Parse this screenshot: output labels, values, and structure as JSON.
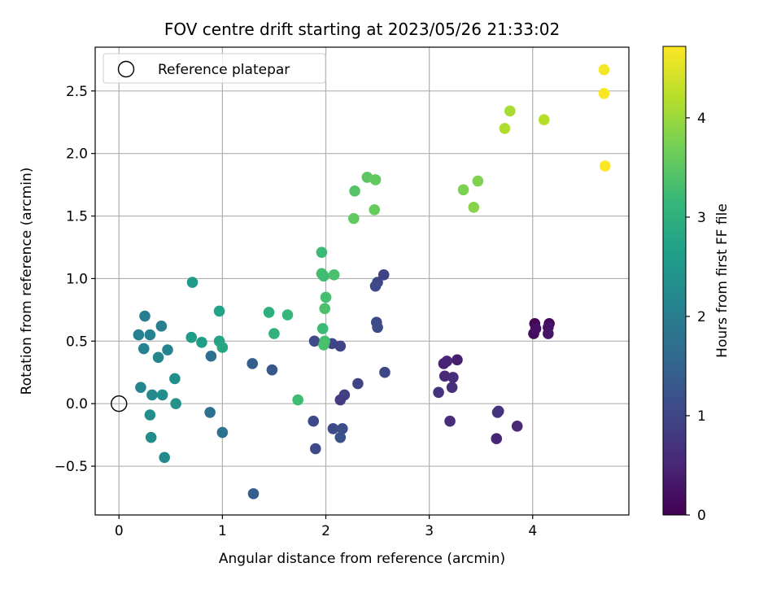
{
  "chart_data": {
    "type": "scatter",
    "title": "FOV centre drift starting at 2023/05/26 21:33:02",
    "xlabel": "Angular distance from reference (arcmin)",
    "ylabel": "Rotation from reference (arcmin)",
    "xlim": [
      -0.23,
      4.93
    ],
    "ylim": [
      -0.89,
      2.85
    ],
    "xticks": [
      0,
      1,
      2,
      3,
      4
    ],
    "xtick_labels": [
      "0",
      "1",
      "2",
      "3",
      "4"
    ],
    "yticks": [
      -0.5,
      0.0,
      0.5,
      1.0,
      1.5,
      2.0,
      2.5
    ],
    "ytick_labels": [
      "−0.5",
      "0.0",
      "0.5",
      "1.0",
      "1.5",
      "2.0",
      "2.5"
    ],
    "grid": true,
    "legend": {
      "placement": "top-left",
      "entries": [
        {
          "label": "Reference platepar",
          "marker": "open-circle"
        }
      ]
    },
    "reference_point": {
      "x": 0.0,
      "y": 0.0
    },
    "colorbar": {
      "label": "Hours from first FF file",
      "range": [
        0,
        4.72
      ],
      "ticks": [
        0,
        1,
        2,
        3,
        4
      ],
      "tick_labels": [
        "0",
        "1",
        "2",
        "3",
        "4"
      ],
      "colormap": "viridis",
      "colors": [
        "#440154",
        "#482878",
        "#3e4989",
        "#31688e",
        "#26828e",
        "#1f9e89",
        "#35b779",
        "#6ece58",
        "#b5de2b",
        "#fde725"
      ]
    },
    "points": [
      {
        "x": 4.02,
        "y": 0.64,
        "h": 0.05
      },
      {
        "x": 4.16,
        "y": 0.64,
        "h": 0.1
      },
      {
        "x": 4.01,
        "y": 0.56,
        "h": 0.15
      },
      {
        "x": 4.03,
        "y": 0.6,
        "h": 0.2
      },
      {
        "x": 4.15,
        "y": 0.61,
        "h": 0.25
      },
      {
        "x": 4.15,
        "y": 0.56,
        "h": 0.3
      },
      {
        "x": 3.27,
        "y": 0.35,
        "h": 0.4
      },
      {
        "x": 3.14,
        "y": 0.32,
        "h": 0.45
      },
      {
        "x": 3.17,
        "y": 0.34,
        "h": 0.5
      },
      {
        "x": 3.15,
        "y": 0.22,
        "h": 0.55
      },
      {
        "x": 3.23,
        "y": 0.21,
        "h": 0.6
      },
      {
        "x": 3.22,
        "y": 0.13,
        "h": 0.65
      },
      {
        "x": 3.09,
        "y": 0.09,
        "h": 0.7
      },
      {
        "x": 3.2,
        "y": -0.14,
        "h": 0.6
      },
      {
        "x": 3.67,
        "y": -0.06,
        "h": 0.65
      },
      {
        "x": 3.66,
        "y": -0.07,
        "h": 0.7
      },
      {
        "x": 3.85,
        "y": -0.18,
        "h": 0.55
      },
      {
        "x": 3.65,
        "y": -0.28,
        "h": 0.5
      },
      {
        "x": 2.56,
        "y": 1.03,
        "h": 0.95
      },
      {
        "x": 2.5,
        "y": 0.97,
        "h": 1.0
      },
      {
        "x": 2.48,
        "y": 0.94,
        "h": 1.05
      },
      {
        "x": 2.49,
        "y": 0.65,
        "h": 1.05
      },
      {
        "x": 2.5,
        "y": 0.61,
        "h": 1.1
      },
      {
        "x": 2.57,
        "y": 0.25,
        "h": 1.0
      },
      {
        "x": 2.31,
        "y": 0.16,
        "h": 0.95
      },
      {
        "x": 2.18,
        "y": 0.07,
        "h": 0.9
      },
      {
        "x": 2.14,
        "y": 0.03,
        "h": 0.85
      },
      {
        "x": 2.06,
        "y": 0.48,
        "h": 1.0
      },
      {
        "x": 2.14,
        "y": 0.46,
        "h": 0.95
      },
      {
        "x": 1.89,
        "y": 0.5,
        "h": 1.1
      },
      {
        "x": 1.88,
        "y": -0.14,
        "h": 1.05
      },
      {
        "x": 2.07,
        "y": -0.2,
        "h": 1.1
      },
      {
        "x": 2.16,
        "y": -0.2,
        "h": 1.15
      },
      {
        "x": 2.14,
        "y": -0.27,
        "h": 1.2
      },
      {
        "x": 1.9,
        "y": -0.36,
        "h": 1.05
      },
      {
        "x": 1.48,
        "y": 0.27,
        "h": 1.3
      },
      {
        "x": 1.29,
        "y": 0.32,
        "h": 1.4
      },
      {
        "x": 1.3,
        "y": -0.72,
        "h": 1.4
      },
      {
        "x": 0.89,
        "y": 0.38,
        "h": 1.7
      },
      {
        "x": 0.88,
        "y": -0.07,
        "h": 1.75
      },
      {
        "x": 1.0,
        "y": -0.23,
        "h": 1.8
      },
      {
        "x": 0.25,
        "y": 0.7,
        "h": 2.0
      },
      {
        "x": 0.19,
        "y": 0.55,
        "h": 2.05
      },
      {
        "x": 0.3,
        "y": 0.55,
        "h": 2.1
      },
      {
        "x": 0.41,
        "y": 0.62,
        "h": 2.0
      },
      {
        "x": 0.24,
        "y": 0.44,
        "h": 2.1
      },
      {
        "x": 0.38,
        "y": 0.37,
        "h": 2.2
      },
      {
        "x": 0.47,
        "y": 0.43,
        "h": 2.15
      },
      {
        "x": 0.21,
        "y": 0.13,
        "h": 2.2
      },
      {
        "x": 0.32,
        "y": 0.07,
        "h": 2.25
      },
      {
        "x": 0.42,
        "y": 0.07,
        "h": 2.3
      },
      {
        "x": 0.54,
        "y": 0.2,
        "h": 2.35
      },
      {
        "x": 0.55,
        "y": 0.0,
        "h": 2.4
      },
      {
        "x": 0.3,
        "y": -0.09,
        "h": 2.3
      },
      {
        "x": 0.31,
        "y": -0.27,
        "h": 2.3
      },
      {
        "x": 0.44,
        "y": -0.43,
        "h": 2.25
      },
      {
        "x": 0.71,
        "y": 0.97,
        "h": 2.55
      },
      {
        "x": 0.7,
        "y": 0.53,
        "h": 2.6
      },
      {
        "x": 0.8,
        "y": 0.49,
        "h": 2.65
      },
      {
        "x": 0.97,
        "y": 0.74,
        "h": 2.7
      },
      {
        "x": 0.97,
        "y": 0.5,
        "h": 2.75
      },
      {
        "x": 1.0,
        "y": 0.45,
        "h": 2.8
      },
      {
        "x": 1.45,
        "y": 0.73,
        "h": 2.95
      },
      {
        "x": 1.5,
        "y": 0.56,
        "h": 3.05
      },
      {
        "x": 1.63,
        "y": 0.71,
        "h": 3.15
      },
      {
        "x": 1.73,
        "y": 0.03,
        "h": 3.25
      },
      {
        "x": 1.96,
        "y": 1.21,
        "h": 3.2
      },
      {
        "x": 1.96,
        "y": 1.04,
        "h": 3.3
      },
      {
        "x": 1.98,
        "y": 1.02,
        "h": 3.25
      },
      {
        "x": 2.08,
        "y": 1.03,
        "h": 3.35
      },
      {
        "x": 2.0,
        "y": 0.85,
        "h": 3.3
      },
      {
        "x": 1.99,
        "y": 0.76,
        "h": 3.35
      },
      {
        "x": 1.97,
        "y": 0.6,
        "h": 3.2
      },
      {
        "x": 1.99,
        "y": 0.5,
        "h": 3.3
      },
      {
        "x": 1.98,
        "y": 0.47,
        "h": 3.35
      },
      {
        "x": 2.4,
        "y": 1.81,
        "h": 3.5
      },
      {
        "x": 2.48,
        "y": 1.79,
        "h": 3.55
      },
      {
        "x": 2.28,
        "y": 1.7,
        "h": 3.45
      },
      {
        "x": 2.47,
        "y": 1.55,
        "h": 3.6
      },
      {
        "x": 2.27,
        "y": 1.48,
        "h": 3.55
      },
      {
        "x": 3.33,
        "y": 1.71,
        "h": 3.75
      },
      {
        "x": 3.47,
        "y": 1.78,
        "h": 3.8
      },
      {
        "x": 3.43,
        "y": 1.57,
        "h": 3.85
      },
      {
        "x": 3.78,
        "y": 2.34,
        "h": 4.1
      },
      {
        "x": 3.73,
        "y": 2.2,
        "h": 4.15
      },
      {
        "x": 4.11,
        "y": 2.27,
        "h": 4.2
      },
      {
        "x": 4.69,
        "y": 2.67,
        "h": 4.65
      },
      {
        "x": 4.69,
        "y": 2.48,
        "h": 4.68
      },
      {
        "x": 4.7,
        "y": 1.9,
        "h": 4.72
      }
    ]
  }
}
